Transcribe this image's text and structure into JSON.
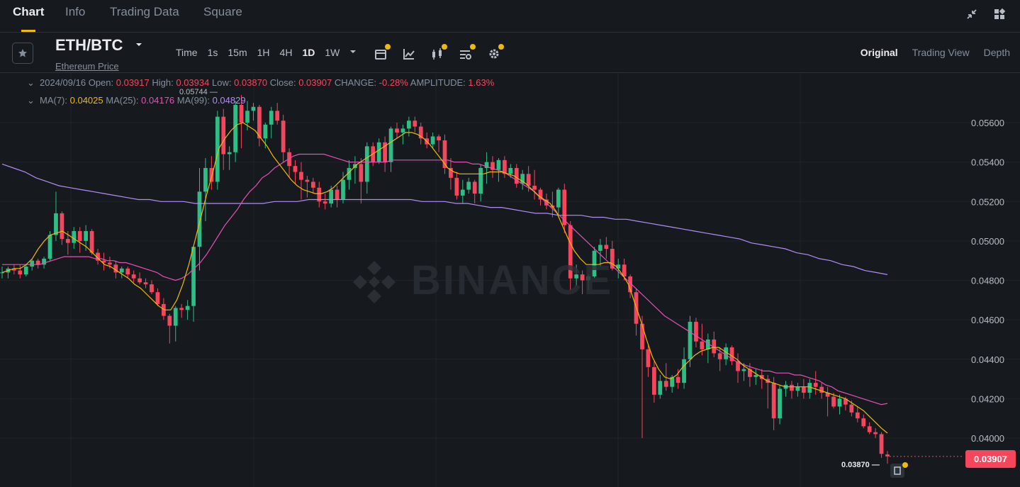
{
  "nav": {
    "tabs": [
      "Chart",
      "Info",
      "Trading Data",
      "Square"
    ],
    "active_tab": "Chart"
  },
  "toolbar": {
    "pair": "ETH/BTC",
    "pair_subtitle": "Ethereum Price",
    "intervals": [
      "Time",
      "1s",
      "15m",
      "1H",
      "4H",
      "1D",
      "1W"
    ],
    "active_interval": "1D",
    "views": [
      "Original",
      "Trading View",
      "Depth"
    ],
    "active_view": "Original"
  },
  "legend": {
    "date": "2024/09/16",
    "open_label": "Open:",
    "open": "0.03917",
    "high_label": "High:",
    "high": "0.03934",
    "low_label": "Low:",
    "low": "0.03870",
    "close_label": "Close:",
    "close": "0.03907",
    "change_label": "CHANGE:",
    "change": "-0.28%",
    "amplitude_label": "AMPLITUDE:",
    "amplitude": "1.63%",
    "ma7_label": "MA(7):",
    "ma7": "0.04025",
    "ma25_label": "MA(25):",
    "ma25": "0.04176",
    "ma99_label": "MA(99):",
    "ma99": "0.04829"
  },
  "watermark": "BINANCE",
  "last_price": "0.03907",
  "max_marker": "0.05744",
  "min_marker": "0.03870",
  "colors": {
    "up": "#2ebd85",
    "down": "#f6465d",
    "ma7": "#f0b90b",
    "ma25": "#e84fb5",
    "ma99": "#b28cf5",
    "accent": "#f0b90b"
  },
  "chart_data": {
    "type": "candlestick",
    "ylim": [
      0.0378,
      0.058
    ],
    "y_ticks": [
      "0.05600",
      "0.05400",
      "0.05200",
      "0.05000",
      "0.04800",
      "0.04600",
      "0.04400",
      "0.04200",
      "0.04000"
    ],
    "candles": [
      [
        0.0484,
        0.0487,
        0.0481,
        0.0484
      ],
      [
        0.0484,
        0.0487,
        0.0481,
        0.0486
      ],
      [
        0.0486,
        0.0488,
        0.0483,
        0.0485
      ],
      [
        0.0485,
        0.0488,
        0.0481,
        0.0483
      ],
      [
        0.0483,
        0.0488,
        0.0482,
        0.0487
      ],
      [
        0.0487,
        0.0491,
        0.0485,
        0.049
      ],
      [
        0.049,
        0.0491,
        0.0486,
        0.0488
      ],
      [
        0.0488,
        0.0492,
        0.0486,
        0.0491
      ],
      [
        0.0491,
        0.0505,
        0.049,
        0.0503
      ],
      [
        0.0503,
        0.0525,
        0.05,
        0.0514
      ],
      [
        0.0514,
        0.0515,
        0.0498,
        0.0501
      ],
      [
        0.0501,
        0.0505,
        0.0493,
        0.0499
      ],
      [
        0.0499,
        0.0507,
        0.0496,
        0.0505
      ],
      [
        0.0505,
        0.0507,
        0.0494,
        0.05
      ],
      [
        0.05,
        0.0508,
        0.0495,
        0.0505
      ],
      [
        0.0505,
        0.0506,
        0.0493,
        0.0494
      ],
      [
        0.0494,
        0.0496,
        0.0488,
        0.049
      ],
      [
        0.049,
        0.0494,
        0.0485,
        0.0489
      ],
      [
        0.0489,
        0.0492,
        0.0486,
        0.0488
      ],
      [
        0.0488,
        0.049,
        0.0481,
        0.0484
      ],
      [
        0.0484,
        0.0487,
        0.0481,
        0.0486
      ],
      [
        0.0486,
        0.0487,
        0.0481,
        0.0483
      ],
      [
        0.0483,
        0.0485,
        0.0479,
        0.0481
      ],
      [
        0.0481,
        0.0484,
        0.0478,
        0.0479
      ],
      [
        0.0479,
        0.0481,
        0.0476,
        0.0478
      ],
      [
        0.0478,
        0.048,
        0.0473,
        0.0474
      ],
      [
        0.0474,
        0.0476,
        0.0467,
        0.0468
      ],
      [
        0.0468,
        0.0471,
        0.046,
        0.0462
      ],
      [
        0.0462,
        0.0463,
        0.0448,
        0.0457
      ],
      [
        0.0457,
        0.0467,
        0.0449,
        0.0466
      ],
      [
        0.0466,
        0.0468,
        0.0461,
        0.0465
      ],
      [
        0.0465,
        0.047,
        0.046,
        0.0467
      ],
      [
        0.0467,
        0.0497,
        0.0459,
        0.0497
      ],
      [
        0.0497,
        0.0537,
        0.0485,
        0.0525
      ],
      [
        0.0525,
        0.0542,
        0.051,
        0.0537
      ],
      [
        0.0537,
        0.0543,
        0.0526,
        0.053
      ],
      [
        0.053,
        0.0566,
        0.0526,
        0.0563
      ],
      [
        0.0563,
        0.0567,
        0.0536,
        0.0544
      ],
      [
        0.0544,
        0.0548,
        0.0536,
        0.0545
      ],
      [
        0.0545,
        0.0571,
        0.054,
        0.0569
      ],
      [
        0.0569,
        0.0574,
        0.0547,
        0.056
      ],
      [
        0.056,
        0.0571,
        0.0556,
        0.0566
      ],
      [
        0.0566,
        0.057,
        0.0561,
        0.0568
      ],
      [
        0.0568,
        0.0569,
        0.0548,
        0.0552
      ],
      [
        0.0552,
        0.056,
        0.0547,
        0.0559
      ],
      [
        0.0559,
        0.0568,
        0.0552,
        0.0566
      ],
      [
        0.0566,
        0.057,
        0.0559,
        0.0561
      ],
      [
        0.0561,
        0.0564,
        0.054,
        0.0545
      ],
      [
        0.0545,
        0.0547,
        0.0532,
        0.0538
      ],
      [
        0.0538,
        0.0541,
        0.0529,
        0.0535
      ],
      [
        0.0535,
        0.054,
        0.0521,
        0.0531
      ],
      [
        0.0531,
        0.0533,
        0.0522,
        0.053
      ],
      [
        0.053,
        0.0532,
        0.0524,
        0.0527
      ],
      [
        0.0527,
        0.053,
        0.0517,
        0.052
      ],
      [
        0.052,
        0.0524,
        0.0516,
        0.0519
      ],
      [
        0.0519,
        0.0528,
        0.0517,
        0.0526
      ],
      [
        0.0526,
        0.0528,
        0.0517,
        0.0521
      ],
      [
        0.0521,
        0.0535,
        0.0519,
        0.0531
      ],
      [
        0.0531,
        0.0541,
        0.0526,
        0.0537
      ],
      [
        0.0537,
        0.0543,
        0.0529,
        0.0539
      ],
      [
        0.0539,
        0.0542,
        0.0519,
        0.053
      ],
      [
        0.053,
        0.055,
        0.0524,
        0.0548
      ],
      [
        0.0548,
        0.055,
        0.0538,
        0.054
      ],
      [
        0.054,
        0.0552,
        0.0539,
        0.055
      ],
      [
        0.055,
        0.0553,
        0.0535,
        0.054
      ],
      [
        0.054,
        0.0558,
        0.0535,
        0.0557
      ],
      [
        0.0557,
        0.056,
        0.0552,
        0.0555
      ],
      [
        0.0555,
        0.0559,
        0.0549,
        0.0557
      ],
      [
        0.0557,
        0.0563,
        0.0553,
        0.0561
      ],
      [
        0.0561,
        0.0563,
        0.0555,
        0.0558
      ],
      [
        0.0558,
        0.056,
        0.0549,
        0.0552
      ],
      [
        0.0552,
        0.0555,
        0.0547,
        0.0549
      ],
      [
        0.0549,
        0.0555,
        0.0547,
        0.0553
      ],
      [
        0.0553,
        0.0554,
        0.0545,
        0.0551
      ],
      [
        0.0551,
        0.0554,
        0.0534,
        0.0537
      ],
      [
        0.0537,
        0.0542,
        0.0526,
        0.0532
      ],
      [
        0.0532,
        0.0535,
        0.0521,
        0.0523
      ],
      [
        0.0523,
        0.0531,
        0.0519,
        0.0526
      ],
      [
        0.0526,
        0.0532,
        0.0524,
        0.053
      ],
      [
        0.053,
        0.0531,
        0.0519,
        0.0524
      ],
      [
        0.0524,
        0.0539,
        0.052,
        0.0537
      ],
      [
        0.0537,
        0.0545,
        0.0529,
        0.054
      ],
      [
        0.054,
        0.0543,
        0.0532,
        0.0536
      ],
      [
        0.0536,
        0.0542,
        0.053,
        0.0541
      ],
      [
        0.0541,
        0.0543,
        0.0532,
        0.0534
      ],
      [
        0.0534,
        0.0539,
        0.0532,
        0.0537
      ],
      [
        0.0537,
        0.0539,
        0.0527,
        0.0529
      ],
      [
        0.0529,
        0.0536,
        0.0526,
        0.0534
      ],
      [
        0.0534,
        0.0538,
        0.0525,
        0.0528
      ],
      [
        0.0528,
        0.0536,
        0.0521,
        0.0526
      ],
      [
        0.0526,
        0.0527,
        0.0518,
        0.0521
      ],
      [
        0.0521,
        0.0524,
        0.0516,
        0.0518
      ],
      [
        0.0518,
        0.0525,
        0.0512,
        0.0517
      ],
      [
        0.0517,
        0.0527,
        0.0512,
        0.0526
      ],
      [
        0.0526,
        0.0529,
        0.0504,
        0.0508
      ],
      [
        0.0508,
        0.051,
        0.0475,
        0.0481
      ],
      [
        0.0481,
        0.0488,
        0.0477,
        0.0483
      ],
      [
        0.0483,
        0.0485,
        0.0473,
        0.048
      ],
      [
        0.048,
        0.0483,
        0.0475,
        0.0482
      ],
      [
        0.0482,
        0.0497,
        0.0481,
        0.0495
      ],
      [
        0.0495,
        0.0501,
        0.0487,
        0.0498
      ],
      [
        0.0498,
        0.0502,
        0.0491,
        0.0496
      ],
      [
        0.0496,
        0.05,
        0.0485,
        0.0486
      ],
      [
        0.0486,
        0.0491,
        0.0481,
        0.0488
      ],
      [
        0.0488,
        0.0491,
        0.048,
        0.0482
      ],
      [
        0.0482,
        0.0483,
        0.0471,
        0.0474
      ],
      [
        0.0474,
        0.0476,
        0.0452,
        0.0458
      ],
      [
        0.0458,
        0.0462,
        0.04,
        0.0445
      ],
      [
        0.0445,
        0.0447,
        0.0431,
        0.0436
      ],
      [
        0.0436,
        0.0439,
        0.0418,
        0.0422
      ],
      [
        0.0422,
        0.0432,
        0.042,
        0.0429
      ],
      [
        0.0429,
        0.0438,
        0.0424,
        0.0426
      ],
      [
        0.0426,
        0.0432,
        0.0423,
        0.0431
      ],
      [
        0.0431,
        0.0435,
        0.0425,
        0.0428
      ],
      [
        0.0428,
        0.0446,
        0.0425,
        0.044
      ],
      [
        0.044,
        0.0462,
        0.0436,
        0.0459
      ],
      [
        0.0459,
        0.0461,
        0.0446,
        0.0449
      ],
      [
        0.0449,
        0.0458,
        0.0442,
        0.0445
      ],
      [
        0.0445,
        0.0453,
        0.0438,
        0.045
      ],
      [
        0.045,
        0.0454,
        0.0441,
        0.0443
      ],
      [
        0.0443,
        0.0446,
        0.0434,
        0.044
      ],
      [
        0.044,
        0.0448,
        0.0437,
        0.0446
      ],
      [
        0.0446,
        0.0447,
        0.0437,
        0.0439
      ],
      [
        0.0439,
        0.0443,
        0.0428,
        0.0434
      ],
      [
        0.0434,
        0.0438,
        0.0429,
        0.0435
      ],
      [
        0.0435,
        0.0438,
        0.0426,
        0.0431
      ],
      [
        0.0431,
        0.0435,
        0.0427,
        0.0432
      ],
      [
        0.0432,
        0.0435,
        0.0425,
        0.043
      ],
      [
        0.043,
        0.0432,
        0.0415,
        0.0428
      ],
      [
        0.0428,
        0.0431,
        0.0404,
        0.041
      ],
      [
        0.041,
        0.0427,
        0.0407,
        0.0425
      ],
      [
        0.0425,
        0.0429,
        0.0421,
        0.0427
      ],
      [
        0.0427,
        0.0429,
        0.042,
        0.0424
      ],
      [
        0.0424,
        0.0428,
        0.0421,
        0.0426
      ],
      [
        0.0426,
        0.043,
        0.042,
        0.0423
      ],
      [
        0.0423,
        0.043,
        0.042,
        0.0428
      ],
      [
        0.0428,
        0.0434,
        0.0422,
        0.0426
      ],
      [
        0.0426,
        0.0428,
        0.042,
        0.0423
      ],
      [
        0.0423,
        0.0426,
        0.0411,
        0.0421
      ],
      [
        0.0421,
        0.0423,
        0.0415,
        0.0416
      ],
      [
        0.0416,
        0.0422,
        0.0412,
        0.042
      ],
      [
        0.042,
        0.0421,
        0.0414,
        0.0417
      ],
      [
        0.0417,
        0.0419,
        0.0411,
        0.0413
      ],
      [
        0.0413,
        0.0416,
        0.0408,
        0.041
      ],
      [
        0.041,
        0.0412,
        0.0405,
        0.0406
      ],
      [
        0.0406,
        0.0408,
        0.0402,
        0.0403
      ],
      [
        0.0403,
        0.0405,
        0.04,
        0.0402
      ],
      [
        0.0402,
        0.0403,
        0.039,
        0.0392
      ],
      [
        0.03917,
        0.03934,
        0.0387,
        0.03907
      ]
    ],
    "ma7": [
      0.0484,
      0.0485,
      0.0486,
      0.0486,
      0.0488,
      0.0491,
      0.0496,
      0.05,
      0.0503,
      0.0504,
      0.0505,
      0.0503,
      0.0501,
      0.0499,
      0.0497,
      0.0494,
      0.0491,
      0.0488,
      0.0487,
      0.0485,
      0.0483,
      0.0481,
      0.0478,
      0.0476,
      0.0473,
      0.047,
      0.0467,
      0.0465,
      0.0465,
      0.047,
      0.0478,
      0.0488,
      0.05,
      0.0512,
      0.0524,
      0.0535,
      0.0547,
      0.0552,
      0.0556,
      0.0559,
      0.056,
      0.0558,
      0.0556,
      0.0552,
      0.0548,
      0.0543,
      0.0539,
      0.0535,
      0.0531,
      0.0528,
      0.0526,
      0.0525,
      0.0524,
      0.0524,
      0.0525,
      0.0527,
      0.053,
      0.0533,
      0.0536,
      0.0539,
      0.0541,
      0.0543,
      0.0545,
      0.0547,
      0.0549,
      0.0551,
      0.0553,
      0.0555,
      0.0555,
      0.0554,
      0.0552,
      0.0549,
      0.0545,
      0.0541,
      0.0537,
      0.0535,
      0.0534,
      0.0534,
      0.0534,
      0.0534,
      0.0534,
      0.0535,
      0.0535,
      0.0535,
      0.0534,
      0.0533,
      0.0531,
      0.0529,
      0.0526,
      0.0523,
      0.0521,
      0.0519,
      0.0515,
      0.0508,
      0.0501,
      0.0495,
      0.0491,
      0.0488,
      0.0488,
      0.0488,
      0.0489,
      0.0489,
      0.0487,
      0.0483,
      0.0478,
      0.0469,
      0.046,
      0.045,
      0.0441,
      0.0435,
      0.0431,
      0.043,
      0.0432,
      0.0436,
      0.0439,
      0.0442,
      0.0444,
      0.0445,
      0.0446,
      0.0446,
      0.0444,
      0.0442,
      0.044,
      0.0437,
      0.0435,
      0.0433,
      0.0431,
      0.0429,
      0.0428,
      0.0427,
      0.0426,
      0.0426,
      0.0426,
      0.0426,
      0.0426,
      0.0425,
      0.0424,
      0.0423,
      0.0422,
      0.0421,
      0.042,
      0.0418,
      0.0416,
      0.0414,
      0.0411,
      0.0408,
      0.0405,
      0.04025
    ],
    "ma25": [
      0.0488,
      0.0488,
      0.0488,
      0.0488,
      0.0488,
      0.0488,
      0.0488,
      0.0489,
      0.049,
      0.0491,
      0.0492,
      0.0492,
      0.0492,
      0.0492,
      0.0492,
      0.0491,
      0.0491,
      0.049,
      0.049,
      0.0489,
      0.0489,
      0.0488,
      0.0487,
      0.0486,
      0.0485,
      0.0484,
      0.0482,
      0.0481,
      0.048,
      0.0481,
      0.0483,
      0.0486,
      0.0489,
      0.0493,
      0.0498,
      0.0503,
      0.0508,
      0.0512,
      0.0516,
      0.0521,
      0.0525,
      0.0528,
      0.0532,
      0.0534,
      0.0537,
      0.0539,
      0.0541,
      0.0543,
      0.0544,
      0.0544,
      0.0544,
      0.0544,
      0.0544,
      0.0543,
      0.0542,
      0.0541,
      0.054,
      0.054,
      0.054,
      0.054,
      0.054,
      0.054,
      0.054,
      0.0541,
      0.0541,
      0.0541,
      0.0541,
      0.0541,
      0.0541,
      0.0541,
      0.0541,
      0.0541,
      0.0541,
      0.054,
      0.054,
      0.054,
      0.0539,
      0.0539,
      0.0538,
      0.0537,
      0.0536,
      0.0535,
      0.0533,
      0.0531,
      0.0529,
      0.0527,
      0.0525,
      0.0522,
      0.0519,
      0.0516,
      0.0513,
      0.051,
      0.0507,
      0.0504,
      0.0501,
      0.0498,
      0.0495,
      0.0492,
      0.0489,
      0.0486,
      0.0483,
      0.048,
      0.0477,
      0.0474,
      0.0471,
      0.0468,
      0.0465,
      0.0462,
      0.046,
      0.0458,
      0.0456,
      0.0454,
      0.0452,
      0.045,
      0.0448,
      0.0446,
      0.0444,
      0.0442,
      0.044,
      0.0438,
      0.0437,
      0.0436,
      0.0435,
      0.0434,
      0.0434,
      0.0433,
      0.0433,
      0.0433,
      0.0432,
      0.0432,
      0.0431,
      0.043,
      0.0429,
      0.0427,
      0.0426,
      0.0424,
      0.0423,
      0.0422,
      0.0421,
      0.042,
      0.0419,
      0.0418,
      0.0417,
      0.04176
    ],
    "ma99": [
      0.0539,
      0.0537,
      0.0535,
      0.0532,
      0.053,
      0.0528,
      0.0527,
      0.0526,
      0.0525,
      0.0524,
      0.0523,
      0.0522,
      0.0521,
      0.0521,
      0.052,
      0.052,
      0.052,
      0.0519,
      0.0519,
      0.0519,
      0.0519,
      0.0519,
      0.0519,
      0.0519,
      0.052,
      0.052,
      0.052,
      0.0521,
      0.0521,
      0.0521,
      0.0521,
      0.0521,
      0.0521,
      0.0521,
      0.0521,
      0.0521,
      0.0521,
      0.052,
      0.052,
      0.052,
      0.0519,
      0.0519,
      0.0518,
      0.0517,
      0.0517,
      0.0516,
      0.0515,
      0.0514,
      0.0514,
      0.0513,
      0.0513,
      0.0513,
      0.0512,
      0.0512,
      0.0511,
      0.0511,
      0.051,
      0.0509,
      0.0508,
      0.0507,
      0.0506,
      0.0505,
      0.0504,
      0.0503,
      0.0502,
      0.0501,
      0.0499,
      0.0498,
      0.0497,
      0.0496,
      0.0494,
      0.0493,
      0.0491,
      0.049,
      0.0488,
      0.0487,
      0.0485,
      0.0484,
      0.04829
    ]
  }
}
